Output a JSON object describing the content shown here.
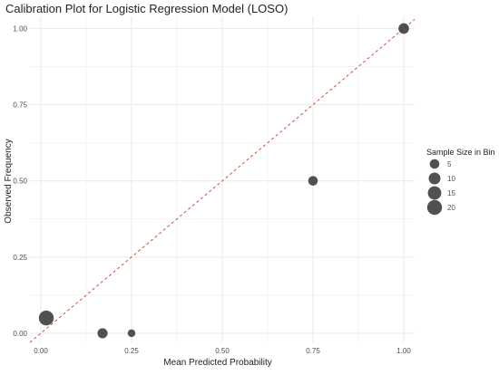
{
  "chart_data": {
    "type": "scatter",
    "title": "Calibration Plot for Logistic Regression Model (LOSO)",
    "xlabel": "Mean Predicted Probability",
    "ylabel": "Observed Frequency",
    "xlim": [
      -0.03,
      1.03
    ],
    "ylim": [
      -0.03,
      1.04
    ],
    "x_ticks": [
      0.0,
      0.25,
      0.5,
      0.75,
      1.0
    ],
    "x_tick_labels": [
      "0.00",
      "0.25",
      "0.50",
      "0.75",
      "1.00"
    ],
    "y_ticks": [
      0.0,
      0.25,
      0.5,
      0.75,
      1.0
    ],
    "y_tick_labels": [
      "0.00",
      "0.25",
      "0.50",
      "0.75",
      "1.00"
    ],
    "grid": true,
    "points": [
      {
        "x": 0.015,
        "y": 0.05,
        "n": 20
      },
      {
        "x": 0.17,
        "y": 0.0,
        "n": 6
      },
      {
        "x": 0.25,
        "y": 0.0,
        "n": 2
      },
      {
        "x": 0.75,
        "y": 0.5,
        "n": 5
      },
      {
        "x": 1.0,
        "y": 1.0,
        "n": 7
      }
    ],
    "reference_line": {
      "from": [
        -0.03,
        -0.03
      ],
      "to": [
        1.03,
        1.03
      ],
      "color": "#e8463a",
      "style": "dashed"
    },
    "legend": {
      "title": "Sample Size in Bin",
      "placement": "right",
      "entries": [
        {
          "label": "5",
          "n": 5
        },
        {
          "label": "10",
          "n": 10
        },
        {
          "label": "15",
          "n": 15
        },
        {
          "label": "20",
          "n": 20
        }
      ]
    },
    "colors": {
      "point": "#333333",
      "point_opacity": 0.85,
      "grid": "#ebebeb",
      "text": "#222222",
      "tick_text": "#4d4d4d"
    }
  }
}
